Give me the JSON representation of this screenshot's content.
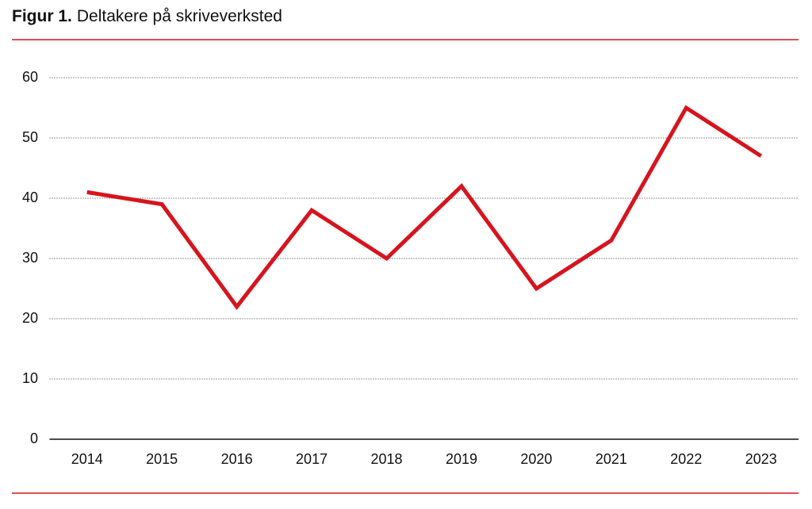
{
  "chart_data": {
    "type": "line",
    "figure_label": "Figur 1.",
    "title": "Deltakere på skriveverksted",
    "categories": [
      "2014",
      "2015",
      "2016",
      "2017",
      "2018",
      "2019",
      "2020",
      "2021",
      "2022",
      "2023"
    ],
    "series": [
      {
        "name": "Deltakere",
        "color": "#d7141e",
        "values": [
          41,
          39,
          22,
          38,
          30,
          42,
          25,
          33,
          55,
          47
        ]
      }
    ],
    "ylim": [
      0,
      60
    ],
    "yticks": [
      0,
      10,
      20,
      30,
      40,
      50,
      60
    ],
    "grid": true
  }
}
